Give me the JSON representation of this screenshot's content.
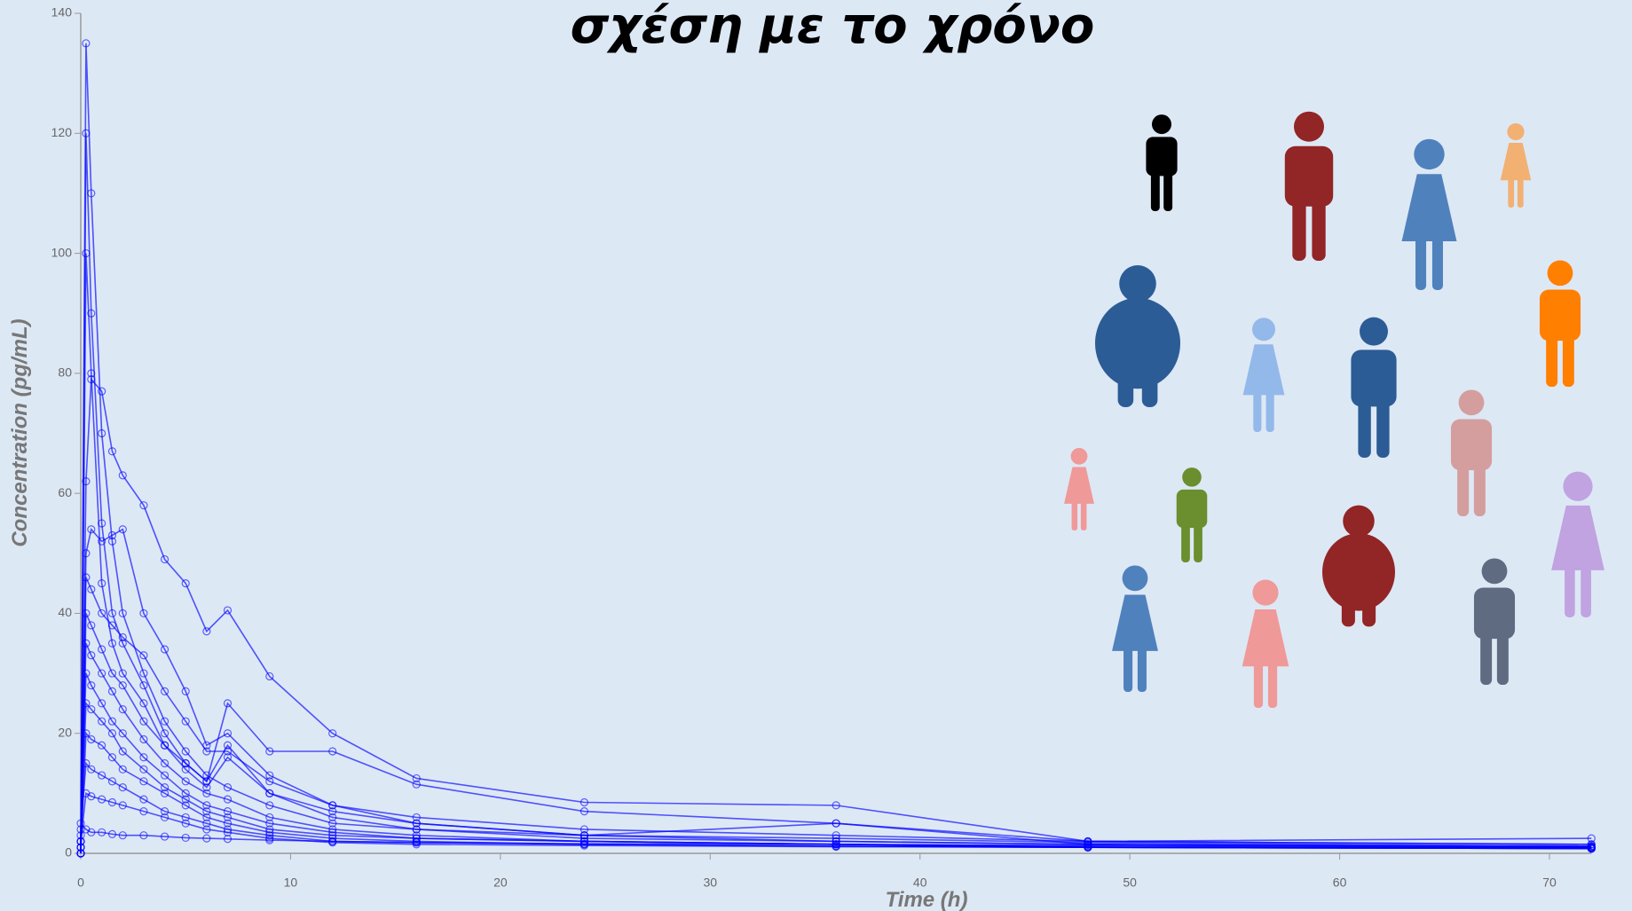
{
  "chart_data": {
    "type": "line",
    "title": "σχέση με το χρόνο",
    "x_label": "Time (h)",
    "y_label": "Concentration (pg/mL)",
    "color": "#0000ff",
    "x": [
      0,
      0.25,
      0.5,
      1,
      1.5,
      2,
      3,
      4,
      5,
      6,
      7,
      9,
      12,
      16,
      24,
      36,
      48,
      72
    ],
    "series": [
      {
        "values": [
          0,
          62,
          79,
          77,
          67,
          63,
          58,
          49,
          45,
          37,
          40.5,
          29.5,
          20,
          12.5,
          8.5,
          8,
          2,
          2.5
        ]
      },
      {
        "values": [
          1,
          135,
          110,
          70,
          52,
          40,
          30,
          22,
          17,
          13,
          11,
          8,
          5,
          4,
          3,
          2.5,
          1.8,
          1.2
        ]
      },
      {
        "values": [
          2,
          50,
          54,
          52,
          53,
          54,
          40,
          34,
          27,
          18,
          20,
          13,
          8,
          6,
          4,
          3,
          2,
          1.5
        ]
      },
      {
        "values": [
          0,
          120,
          90,
          55,
          40,
          35,
          28,
          20,
          15,
          12,
          18,
          10,
          7,
          5,
          3,
          5,
          1.5,
          1
        ]
      },
      {
        "values": [
          1,
          46,
          44,
          40,
          38,
          36,
          33,
          27,
          22,
          17,
          17,
          12,
          8,
          5,
          3,
          2,
          1.5,
          1
        ]
      },
      {
        "values": [
          0,
          40,
          38,
          34,
          30,
          28,
          22,
          18,
          15,
          12,
          25,
          17,
          17,
          11.5,
          7,
          5,
          2,
          1.5
        ]
      },
      {
        "values": [
          3,
          35,
          33,
          30,
          27,
          24,
          19,
          15,
          12,
          10,
          9,
          6,
          4,
          3,
          2,
          1.5,
          1,
          0.8
        ]
      },
      {
        "values": [
          2,
          30,
          28,
          25,
          22,
          20,
          16,
          13,
          10,
          8,
          7,
          5,
          3.5,
          2.5,
          2,
          1.5,
          1.2,
          1
        ]
      },
      {
        "values": [
          1,
          25,
          24,
          22,
          20,
          17,
          14,
          11,
          9,
          7,
          6,
          4,
          3,
          2.5,
          2,
          1.5,
          1,
          1
        ]
      },
      {
        "values": [
          0,
          20,
          19,
          18,
          16,
          14,
          12,
          10,
          8,
          6,
          5,
          3.5,
          2.5,
          2,
          1.5,
          1.2,
          1,
          0.8
        ]
      },
      {
        "values": [
          4,
          15,
          14,
          13,
          12,
          11,
          9,
          7,
          6,
          5,
          4,
          3,
          2,
          1.8,
          1.5,
          1.2,
          1,
          0.8
        ]
      },
      {
        "values": [
          5,
          4,
          3.5,
          3.5,
          3.2,
          3,
          3,
          2.8,
          2.6,
          2.5,
          2.4,
          2.2,
          2,
          1.8,
          1.6,
          1.5,
          1.3,
          1
        ]
      },
      {
        "values": [
          0,
          100,
          80,
          45,
          35,
          30,
          25,
          18,
          14,
          11,
          16,
          10,
          6,
          4,
          2.5,
          2,
          1.5,
          1.2
        ]
      },
      {
        "values": [
          2,
          10,
          9.5,
          9,
          8.5,
          8,
          7,
          6,
          5,
          4,
          3.5,
          2.5,
          1.8,
          1.5,
          1.3,
          1.1,
          1,
          0.8
        ]
      }
    ],
    "xlim": [
      0,
      72
    ],
    "ylim": [
      0,
      140
    ],
    "xticks": [
      0,
      10,
      20,
      30,
      40,
      50,
      60,
      70
    ],
    "yticks": [
      0,
      20,
      40,
      60,
      80,
      100,
      120,
      140
    ]
  }
}
